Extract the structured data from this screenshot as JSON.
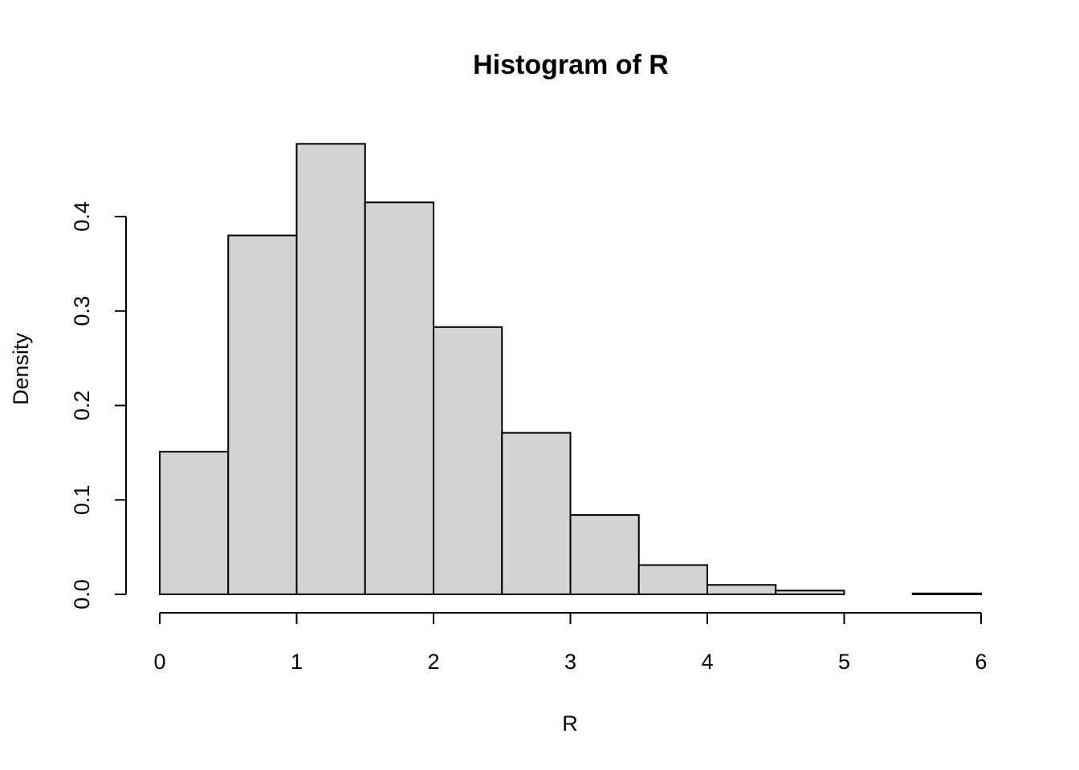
{
  "chart_data": {
    "type": "bar",
    "title": "Histogram of R",
    "xlabel": "R",
    "ylabel": "Density",
    "bins": [
      {
        "x0": 0.0,
        "x1": 0.5,
        "density": 0.151
      },
      {
        "x0": 0.5,
        "x1": 1.0,
        "density": 0.38
      },
      {
        "x0": 1.0,
        "x1": 1.5,
        "density": 0.477
      },
      {
        "x0": 1.5,
        "x1": 2.0,
        "density": 0.415
      },
      {
        "x0": 2.0,
        "x1": 2.5,
        "density": 0.283
      },
      {
        "x0": 2.5,
        "x1": 3.0,
        "density": 0.171
      },
      {
        "x0": 3.0,
        "x1": 3.5,
        "density": 0.084
      },
      {
        "x0": 3.5,
        "x1": 4.0,
        "density": 0.031
      },
      {
        "x0": 4.0,
        "x1": 4.5,
        "density": 0.01
      },
      {
        "x0": 4.5,
        "x1": 5.0,
        "density": 0.004
      },
      {
        "x0": 5.0,
        "x1": 5.5,
        "density": 0.0
      },
      {
        "x0": 5.5,
        "x1": 6.0,
        "density": 0.001
      }
    ],
    "xlim": [
      0,
      6
    ],
    "ylim": [
      0,
      0.4
    ],
    "x_ticks": [
      "0",
      "1",
      "2",
      "3",
      "4",
      "5",
      "6"
    ],
    "y_ticks": [
      "0.0",
      "0.1",
      "0.2",
      "0.3",
      "0.4"
    ],
    "bar_fill": "#d3d3d3",
    "bar_stroke": "#000000",
    "grid": false
  }
}
